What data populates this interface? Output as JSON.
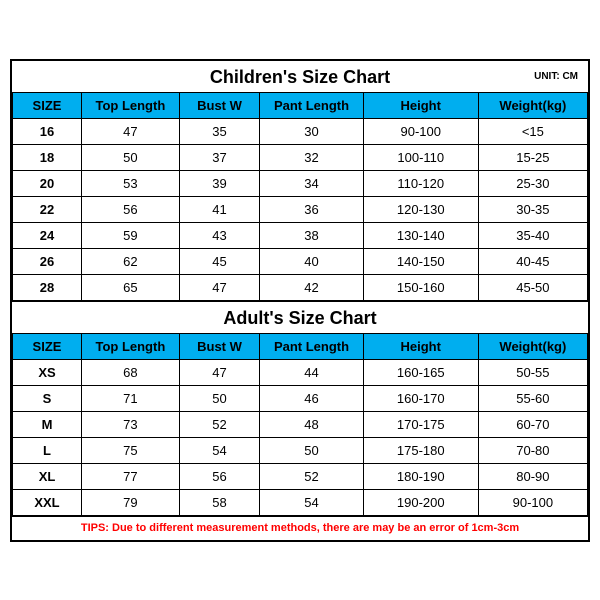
{
  "unit_label": "UNIT: CM",
  "columns": [
    "SIZE",
    "Top Length",
    "Bust W",
    "Pant Length",
    "Height",
    "Weight(kg)"
  ],
  "children": {
    "title": "Children's Size Chart",
    "rows": [
      {
        "size": "16",
        "top": "47",
        "bust": "35",
        "pant": "30",
        "height": "90-100",
        "weight": "<15"
      },
      {
        "size": "18",
        "top": "50",
        "bust": "37",
        "pant": "32",
        "height": "100-110",
        "weight": "15-25"
      },
      {
        "size": "20",
        "top": "53",
        "bust": "39",
        "pant": "34",
        "height": "110-120",
        "weight": "25-30"
      },
      {
        "size": "22",
        "top": "56",
        "bust": "41",
        "pant": "36",
        "height": "120-130",
        "weight": "30-35"
      },
      {
        "size": "24",
        "top": "59",
        "bust": "43",
        "pant": "38",
        "height": "130-140",
        "weight": "35-40"
      },
      {
        "size": "26",
        "top": "62",
        "bust": "45",
        "pant": "40",
        "height": "140-150",
        "weight": "40-45"
      },
      {
        "size": "28",
        "top": "65",
        "bust": "47",
        "pant": "42",
        "height": "150-160",
        "weight": "45-50"
      }
    ]
  },
  "adult": {
    "title": "Adult's Size Chart",
    "rows": [
      {
        "size": "XS",
        "top": "68",
        "bust": "47",
        "pant": "44",
        "height": "160-165",
        "weight": "50-55"
      },
      {
        "size": "S",
        "top": "71",
        "bust": "50",
        "pant": "46",
        "height": "160-170",
        "weight": "55-60"
      },
      {
        "size": "M",
        "top": "73",
        "bust": "52",
        "pant": "48",
        "height": "170-175",
        "weight": "60-70"
      },
      {
        "size": "L",
        "top": "75",
        "bust": "54",
        "pant": "50",
        "height": "175-180",
        "weight": "70-80"
      },
      {
        "size": "XL",
        "top": "77",
        "bust": "56",
        "pant": "52",
        "height": "180-190",
        "weight": "80-90"
      },
      {
        "size": "XXL",
        "top": "79",
        "bust": "58",
        "pant": "54",
        "height": "190-200",
        "weight": "90-100"
      }
    ]
  },
  "tips": "TIPS: Due to different measurement methods, there are may be an error of 1cm-3cm",
  "colors": {
    "header_bg": "#00aeef",
    "border": "#000000",
    "tips_text": "#ff0000",
    "background": "#ffffff"
  }
}
